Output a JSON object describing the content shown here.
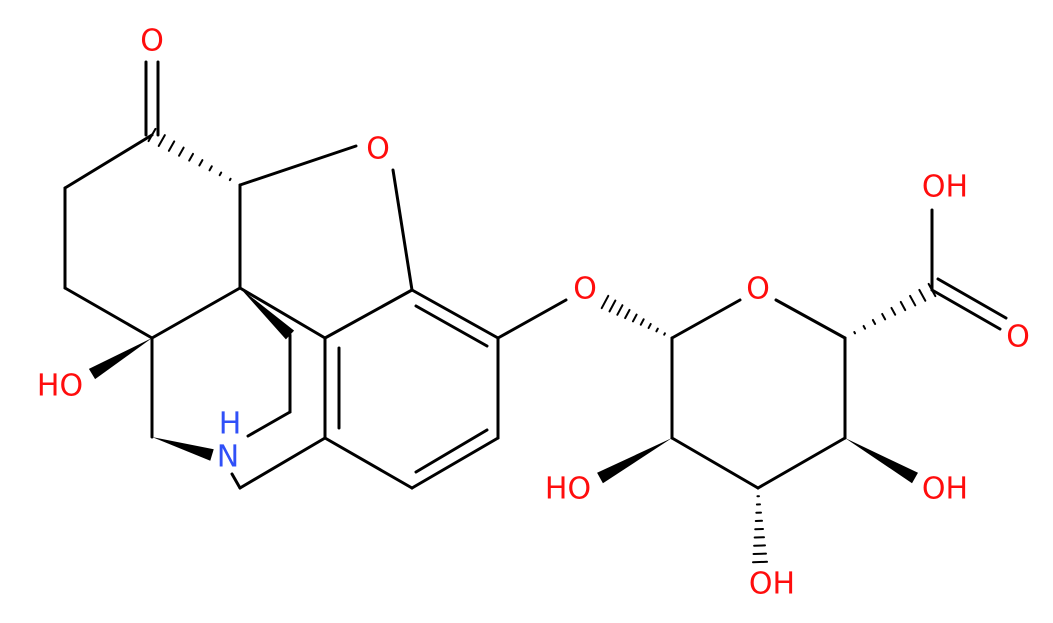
{
  "atoms": [
    {
      "label": "O"
    },
    {
      "label": "O"
    },
    {
      "label": "HO"
    },
    {
      "label": "H"
    },
    {
      "label": "N"
    },
    {
      "label": "O"
    },
    {
      "label": "O"
    },
    {
      "label": "OH"
    },
    {
      "label": "O"
    },
    {
      "label": "HO"
    },
    {
      "label": "OH"
    },
    {
      "label": "OH"
    }
  ]
}
